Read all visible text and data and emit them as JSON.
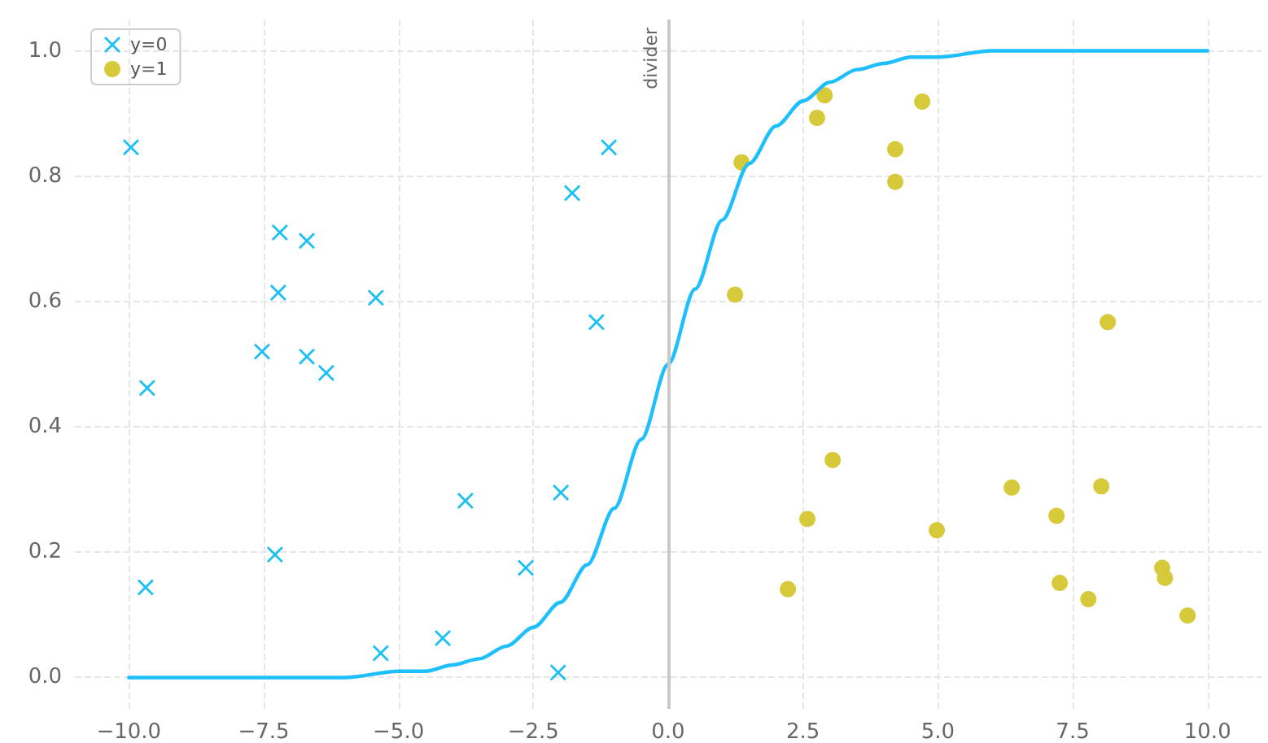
{
  "chart_data": {
    "type": "scatter",
    "series": [
      {
        "name": "y=0",
        "marker": "cross",
        "color": "#1ebff2",
        "x": [
          -9.96,
          -9.66,
          -9.69,
          -7.53,
          -7.2,
          -7.23,
          -6.7,
          -6.7,
          -6.34,
          -7.29,
          -5.42,
          -5.33,
          -4.18,
          -3.76,
          -2.64,
          -2.04,
          -1.99,
          -1.78,
          -1.33,
          -1.1
        ],
        "values": [
          0.846,
          0.462,
          0.144,
          0.52,
          0.71,
          0.614,
          0.697,
          0.512,
          0.486,
          0.196,
          0.606,
          0.039,
          0.063,
          0.282,
          0.175,
          0.008,
          0.295,
          0.773,
          0.567,
          0.846
        ]
      },
      {
        "name": "y=1",
        "marker": "circle",
        "color": "#d6c93a",
        "x": [
          1.24,
          1.36,
          2.22,
          2.58,
          2.76,
          2.9,
          3.05,
          4.21,
          4.21,
          4.71,
          4.98,
          6.37,
          7.2,
          7.26,
          7.79,
          8.03,
          8.15,
          9.16,
          9.21,
          9.63
        ],
        "values": [
          0.611,
          0.822,
          0.141,
          0.253,
          0.893,
          0.929,
          0.347,
          0.843,
          0.791,
          0.919,
          0.235,
          0.303,
          0.258,
          0.151,
          0.125,
          0.305,
          0.567,
          0.175,
          0.159,
          0.099
        ]
      },
      {
        "type": "line",
        "marker": "none",
        "color": "#1ebfff",
        "x": [
          -10,
          -9,
          -8,
          -7,
          -6,
          -5,
          -4.5,
          -4,
          -3.5,
          -3,
          -2.5,
          -2,
          -1.5,
          -1,
          -0.5,
          0,
          0.5,
          1,
          1.5,
          2,
          2.5,
          3,
          3.5,
          4,
          4.5,
          5,
          6,
          7,
          8,
          9,
          10
        ],
        "values": [
          0,
          0,
          0,
          0,
          0,
          0.01,
          0.01,
          0.02,
          0.03,
          0.05,
          0.08,
          0.12,
          0.18,
          0.27,
          0.38,
          0.5,
          0.62,
          0.73,
          0.82,
          0.88,
          0.92,
          0.95,
          0.97,
          0.98,
          0.99,
          0.99,
          1,
          1,
          1,
          1,
          1
        ]
      }
    ],
    "xlim": [
      -11,
      11
    ],
    "xticks": [
      {
        "value": -10,
        "label": "−10.0"
      },
      {
        "value": -7.5,
        "label": "−7.5"
      },
      {
        "value": -5,
        "label": "−5.0"
      },
      {
        "value": -2.5,
        "label": "−2.5"
      },
      {
        "value": 0,
        "label": "0.0"
      },
      {
        "value": 2.5,
        "label": "2.5"
      },
      {
        "value": 5,
        "label": "5.0"
      },
      {
        "value": 7.5,
        "label": "7.5"
      },
      {
        "value": 10,
        "label": "10.0"
      }
    ],
    "ylim": [
      -0.05,
      1.05
    ],
    "yticks": [
      {
        "value": 0,
        "label": "0.0"
      },
      {
        "value": 0.2,
        "label": "0.2"
      },
      {
        "value": 0.4,
        "label": "0.4"
      },
      {
        "value": 0.6,
        "label": "0.6"
      },
      {
        "value": 0.8,
        "label": "0.8"
      },
      {
        "value": 1,
        "label": "1.0"
      }
    ],
    "ref_lines": [
      {
        "axis": "x",
        "value": 0,
        "label": "divider",
        "color": "#c8c8c8"
      }
    ],
    "grid": true,
    "legend": "top left"
  }
}
